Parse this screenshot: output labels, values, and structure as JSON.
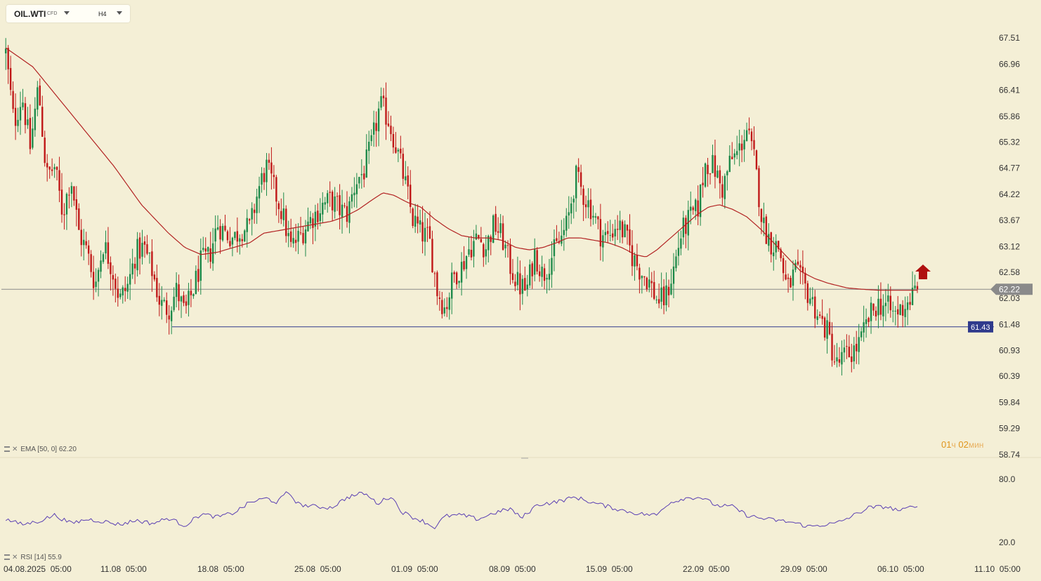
{
  "toolbar": {
    "symbol": "OIL.WTI",
    "symbol_type": "CFD",
    "timeframe": "H4"
  },
  "chart_data": {
    "type": "candlestick",
    "price_axis": [
      "67.51",
      "66.96",
      "66.41",
      "65.86",
      "65.32",
      "64.77",
      "64.22",
      "63.67",
      "63.12",
      "62.58",
      "62.03",
      "61.48",
      "60.93",
      "60.39",
      "59.84",
      "59.29",
      "58.74"
    ],
    "price_range": [
      58.74,
      67.51
    ],
    "x_labels": [
      "04.08.2025  05:00",
      "11.08  05:00",
      "18.08  05:00",
      "25.08  05:00",
      "01.09  05:00",
      "08.09  05:00",
      "15.09  05:00",
      "22.09  05:00",
      "29.09  05:00",
      "06.10  05:00",
      "11.10  05:00"
    ],
    "current_price": "62.22",
    "current_price_value": 62.22,
    "horizontal_line": {
      "label": "61.43",
      "value": 61.43
    },
    "up_color": "#1e8a4a",
    "down_color": "#c01818",
    "ema_color": "#b22222",
    "close_path": [
      [
        0,
        67.2
      ],
      [
        3,
        65.7
      ],
      [
        6,
        66.3
      ],
      [
        9,
        65.2
      ],
      [
        12,
        66.5
      ],
      [
        15,
        64.6
      ],
      [
        18,
        64.8
      ],
      [
        21,
        63.8
      ],
      [
        24,
        64.6
      ],
      [
        27,
        63.4
      ],
      [
        30,
        63.0
      ],
      [
        33,
        62.3
      ],
      [
        36,
        63.2
      ],
      [
        39,
        62.7
      ],
      [
        42,
        62.0
      ],
      [
        45,
        62.3
      ],
      [
        48,
        63.0
      ],
      [
        51,
        63.1
      ],
      [
        54,
        62.6
      ],
      [
        57,
        61.9
      ],
      [
        60,
        61.8
      ],
      [
        63,
        62.2
      ],
      [
        66,
        61.7
      ],
      [
        69,
        62.2
      ],
      [
        72,
        62.8
      ],
      [
        75,
        62.9
      ],
      [
        78,
        63.6
      ],
      [
        81,
        63.4
      ],
      [
        84,
        63.3
      ],
      [
        87,
        63.5
      ],
      [
        90,
        63.5
      ],
      [
        93,
        64.3
      ],
      [
        96,
        64.8
      ],
      [
        99,
        64.3
      ],
      [
        102,
        63.8
      ],
      [
        105,
        63.1
      ],
      [
        108,
        63.3
      ],
      [
        111,
        63.6
      ],
      [
        114,
        63.8
      ],
      [
        117,
        64.0
      ],
      [
        120,
        64.1
      ],
      [
        123,
        63.9
      ],
      [
        126,
        63.8
      ],
      [
        129,
        64.5
      ],
      [
        132,
        64.7
      ],
      [
        135,
        65.3
      ],
      [
        138,
        66.1
      ],
      [
        141,
        65.8
      ],
      [
        144,
        65.2
      ],
      [
        147,
        64.5
      ],
      [
        150,
        63.7
      ],
      [
        153,
        63.4
      ],
      [
        156,
        63.3
      ],
      [
        159,
        62.2
      ],
      [
        162,
        61.8
      ],
      [
        165,
        62.5
      ],
      [
        168,
        62.7
      ],
      [
        171,
        63.1
      ],
      [
        174,
        63.3
      ],
      [
        177,
        63.1
      ],
      [
        180,
        63.6
      ],
      [
        183,
        63.3
      ],
      [
        186,
        62.7
      ],
      [
        189,
        62.3
      ],
      [
        192,
        62.2
      ],
      [
        195,
        63.0
      ],
      [
        198,
        62.5
      ],
      [
        201,
        62.9
      ],
      [
        204,
        63.2
      ],
      [
        207,
        63.6
      ],
      [
        210,
        64.6
      ],
      [
        213,
        64.2
      ],
      [
        216,
        63.9
      ],
      [
        219,
        63.4
      ],
      [
        222,
        63.3
      ],
      [
        225,
        63.6
      ],
      [
        228,
        63.4
      ],
      [
        231,
        62.9
      ],
      [
        234,
        62.6
      ],
      [
        237,
        62.4
      ],
      [
        240,
        62.0
      ],
      [
        243,
        62.0
      ],
      [
        246,
        62.6
      ],
      [
        249,
        63.4
      ],
      [
        252,
        63.7
      ],
      [
        255,
        63.9
      ],
      [
        258,
        64.9
      ],
      [
        261,
        64.8
      ],
      [
        264,
        64.3
      ],
      [
        267,
        64.9
      ],
      [
        270,
        65.1
      ],
      [
        273,
        65.6
      ],
      [
        276,
        64.9
      ],
      [
        279,
        63.6
      ],
      [
        282,
        63.2
      ],
      [
        285,
        63.1
      ],
      [
        288,
        62.2
      ],
      [
        291,
        62.6
      ],
      [
        294,
        62.3
      ],
      [
        297,
        62.0
      ],
      [
        300,
        61.6
      ],
      [
        303,
        61.3
      ],
      [
        306,
        60.6
      ],
      [
        309,
        60.8
      ],
      [
        312,
        60.9
      ],
      [
        315,
        61.1
      ],
      [
        318,
        61.6
      ],
      [
        321,
        61.9
      ],
      [
        324,
        61.9
      ],
      [
        327,
        61.7
      ],
      [
        330,
        61.8
      ],
      [
        333,
        62.0
      ],
      [
        336,
        62.22
      ]
    ],
    "ema_label": "EMA [50, 0] 62.20",
    "ema_path": [
      [
        0,
        67.3
      ],
      [
        10,
        66.9
      ],
      [
        20,
        66.2
      ],
      [
        30,
        65.5
      ],
      [
        40,
        64.8
      ],
      [
        50,
        64.0
      ],
      [
        60,
        63.4
      ],
      [
        66,
        63.1
      ],
      [
        72,
        62.95
      ],
      [
        78,
        63.0
      ],
      [
        84,
        63.1
      ],
      [
        90,
        63.2
      ],
      [
        95,
        63.4
      ],
      [
        100,
        63.45
      ],
      [
        105,
        63.5
      ],
      [
        110,
        63.55
      ],
      [
        115,
        63.6
      ],
      [
        120,
        63.65
      ],
      [
        125,
        63.75
      ],
      [
        130,
        63.9
      ],
      [
        135,
        64.1
      ],
      [
        139,
        64.25
      ],
      [
        143,
        64.2
      ],
      [
        148,
        64.05
      ],
      [
        153,
        63.95
      ],
      [
        158,
        63.7
      ],
      [
        163,
        63.5
      ],
      [
        168,
        63.35
      ],
      [
        173,
        63.3
      ],
      [
        178,
        63.3
      ],
      [
        183,
        63.25
      ],
      [
        188,
        63.1
      ],
      [
        193,
        63.05
      ],
      [
        198,
        63.1
      ],
      [
        203,
        63.2
      ],
      [
        207,
        63.3
      ],
      [
        212,
        63.3
      ],
      [
        217,
        63.25
      ],
      [
        222,
        63.2
      ],
      [
        227,
        63.1
      ],
      [
        232,
        62.95
      ],
      [
        236,
        62.9
      ],
      [
        240,
        63.05
      ],
      [
        245,
        63.3
      ],
      [
        250,
        63.55
      ],
      [
        255,
        63.8
      ],
      [
        259,
        63.95
      ],
      [
        263,
        64.0
      ],
      [
        268,
        63.9
      ],
      [
        273,
        63.75
      ],
      [
        278,
        63.5
      ],
      [
        283,
        63.2
      ],
      [
        288,
        62.9
      ],
      [
        293,
        62.6
      ],
      [
        298,
        62.45
      ],
      [
        303,
        62.35
      ],
      [
        310,
        62.25
      ],
      [
        316,
        62.22
      ],
      [
        322,
        62.2
      ]
    ],
    "rsi": {
      "label": "RSI [14] 55.9",
      "axis": [
        "80.0",
        "20.0"
      ],
      "range": [
        20,
        80
      ],
      "values": [
        [
          0,
          42
        ],
        [
          6,
          37
        ],
        [
          12,
          40
        ],
        [
          18,
          46
        ],
        [
          24,
          38
        ],
        [
          30,
          42
        ],
        [
          36,
          40
        ],
        [
          42,
          37
        ],
        [
          48,
          41
        ],
        [
          54,
          38
        ],
        [
          60,
          43
        ],
        [
          66,
          36
        ],
        [
          72,
          47
        ],
        [
          78,
          44
        ],
        [
          84,
          48
        ],
        [
          90,
          58
        ],
        [
          96,
          62
        ],
        [
          100,
          58
        ],
        [
          104,
          68
        ],
        [
          108,
          56
        ],
        [
          114,
          54
        ],
        [
          120,
          53
        ],
        [
          126,
          63
        ],
        [
          132,
          67
        ],
        [
          137,
          57
        ],
        [
          142,
          64
        ],
        [
          146,
          49
        ],
        [
          150,
          44
        ],
        [
          154,
          40
        ],
        [
          158,
          34
        ],
        [
          162,
          45
        ],
        [
          168,
          46
        ],
        [
          174,
          42
        ],
        [
          180,
          48
        ],
        [
          186,
          52
        ],
        [
          190,
          43
        ],
        [
          196,
          56
        ],
        [
          202,
          58
        ],
        [
          210,
          63
        ],
        [
          216,
          58
        ],
        [
          222,
          54
        ],
        [
          228,
          50
        ],
        [
          234,
          47
        ],
        [
          240,
          46
        ],
        [
          244,
          57
        ],
        [
          250,
          62
        ],
        [
          256,
          63
        ],
        [
          262,
          55
        ],
        [
          268,
          54
        ],
        [
          273,
          46
        ],
        [
          278,
          43
        ],
        [
          284,
          41
        ],
        [
          290,
          39
        ],
        [
          296,
          35
        ],
        [
          302,
          37
        ],
        [
          306,
          38
        ],
        [
          312,
          45
        ],
        [
          318,
          53
        ],
        [
          324,
          54
        ],
        [
          330,
          50
        ],
        [
          336,
          55.9
        ]
      ]
    }
  },
  "timer": {
    "hours": "01",
    "hours_unit": "ч",
    "minutes": "02",
    "minutes_unit": "мин"
  }
}
